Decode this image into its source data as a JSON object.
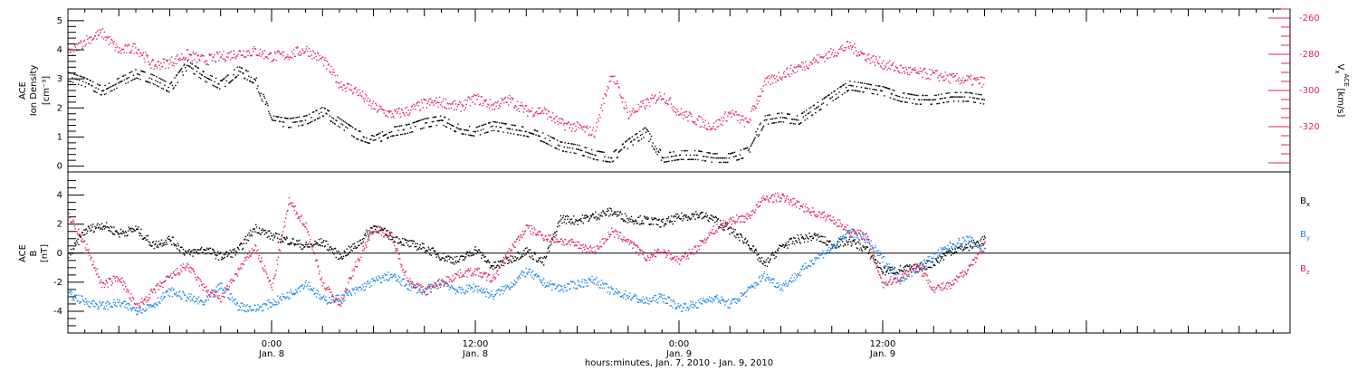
{
  "chart_data": [
    {
      "type": "scatter",
      "panel": "ion-density-velocity",
      "ylabel_line1": "ACE",
      "ylabel_line2": "Ion Density",
      "ylabel_units": "[cm⁻³]",
      "y2label_main": "V",
      "y2label_sub": "x",
      "y2label_sup": "ACE",
      "y2label_units": "[km/s]",
      "ylim": [
        -0.2,
        5.4
      ],
      "y2lim": [
        -255,
        -345
      ],
      "yticks": [
        "0",
        "1",
        "2",
        "3",
        "4",
        "5"
      ],
      "y2ticks": [
        "-260",
        "-280",
        "-300",
        "-320"
      ],
      "right_axis_color": "#e0245e",
      "series": [
        {
          "name": "Ion Density",
          "color": "#000000",
          "x_hours": [
            0,
            1,
            2,
            3,
            4,
            5,
            6,
            7,
            8,
            9,
            10,
            11,
            12,
            13,
            14,
            15,
            16,
            17,
            18,
            19,
            20,
            21,
            22,
            23,
            24,
            25,
            26,
            27,
            28,
            29,
            30,
            31,
            32,
            33,
            34,
            35,
            36,
            37,
            38,
            39,
            40,
            41,
            42,
            43,
            44,
            45,
            46,
            47,
            48,
            49,
            50,
            51,
            52,
            53,
            54
          ],
          "values": [
            3.1,
            2.9,
            2.6,
            2.9,
            3.2,
            3.0,
            2.7,
            3.5,
            3.1,
            2.8,
            3.3,
            3.0,
            1.6,
            1.5,
            1.6,
            1.9,
            1.5,
            1.1,
            0.9,
            1.2,
            1.3,
            1.5,
            1.6,
            1.3,
            1.2,
            1.4,
            1.3,
            1.2,
            1.0,
            0.7,
            0.6,
            0.4,
            0.3,
            0.8,
            1.2,
            0.3,
            0.4,
            0.4,
            0.3,
            0.3,
            0.5,
            1.6,
            1.7,
            1.6,
            2.0,
            2.4,
            2.8,
            2.7,
            2.6,
            2.4,
            2.3,
            2.3,
            2.4,
            2.4,
            2.3
          ]
        },
        {
          "name": "Vx",
          "color": "#e0245e",
          "axis": "right",
          "x_hours": [
            0,
            1,
            2,
            3,
            4,
            5,
            6,
            7,
            8,
            9,
            10,
            11,
            12,
            13,
            14,
            15,
            16,
            17,
            18,
            19,
            20,
            21,
            22,
            23,
            24,
            25,
            26,
            27,
            28,
            29,
            30,
            31,
            32,
            33,
            34,
            35,
            36,
            37,
            38,
            39,
            40,
            41,
            42,
            43,
            44,
            45,
            46,
            47,
            48,
            49,
            50,
            51,
            52,
            53,
            54
          ],
          "values": [
            -280,
            -272,
            -268,
            -278,
            -276,
            -286,
            -284,
            -280,
            -283,
            -281,
            -279,
            -278,
            -281,
            -280,
            -277,
            -283,
            -296,
            -300,
            -309,
            -313,
            -311,
            -307,
            -306,
            -309,
            -304,
            -308,
            -305,
            -311,
            -311,
            -318,
            -320,
            -323,
            -290,
            -313,
            -307,
            -302,
            -312,
            -316,
            -320,
            -312,
            -318,
            -296,
            -291,
            -287,
            -283,
            -279,
            -275,
            -281,
            -285,
            -288,
            -290,
            -291,
            -293,
            -294,
            -295
          ]
        }
      ]
    },
    {
      "type": "scatter",
      "panel": "magnetic-field",
      "ylabel_line1": "ACE",
      "ylabel_line2": "B",
      "ylabel_units": "[nT]",
      "ylim": [
        -5.5,
        5.6
      ],
      "yticks": [
        "4",
        "2",
        "0",
        "-2",
        "-4"
      ],
      "zero_line": true,
      "series": [
        {
          "name": "B",
          "sub": "x",
          "color": "#000000",
          "x_hours": [
            0,
            1,
            2,
            3,
            4,
            5,
            6,
            7,
            8,
            9,
            10,
            11,
            12,
            13,
            14,
            15,
            16,
            17,
            18,
            19,
            20,
            21,
            22,
            23,
            24,
            25,
            26,
            27,
            28,
            29,
            30,
            31,
            32,
            33,
            34,
            35,
            36,
            37,
            38,
            39,
            40,
            41,
            42,
            43,
            44,
            45,
            46,
            47,
            48,
            49,
            50,
            51,
            52,
            53,
            54
          ],
          "values": [
            -0.2,
            1.6,
            2.0,
            1.4,
            1.7,
            0.6,
            1.0,
            0.0,
            0.3,
            -0.2,
            0.2,
            1.8,
            1.2,
            0.9,
            0.5,
            0.8,
            -0.2,
            0.6,
            1.9,
            1.2,
            0.7,
            0.4,
            -0.2,
            -0.5,
            0.3,
            -0.9,
            -0.4,
            0.2,
            -0.6,
            2.4,
            2.3,
            2.6,
            2.9,
            2.4,
            2.3,
            2.1,
            2.5,
            2.7,
            2.4,
            1.6,
            0.8,
            -0.8,
            0.5,
            1.0,
            1.2,
            0.6,
            0.9,
            0.3,
            -1.2,
            -1.1,
            -1.0,
            -0.6,
            0.2,
            0.5,
            1.0
          ]
        },
        {
          "name": "B",
          "sub": "y",
          "color": "#1e88e5",
          "x_hours": [
            0,
            1,
            2,
            3,
            4,
            5,
            6,
            7,
            8,
            9,
            10,
            11,
            12,
            13,
            14,
            15,
            16,
            17,
            18,
            19,
            20,
            21,
            22,
            23,
            24,
            25,
            26,
            27,
            28,
            29,
            30,
            31,
            32,
            33,
            34,
            35,
            36,
            37,
            38,
            39,
            40,
            41,
            42,
            43,
            44,
            45,
            46,
            47,
            48,
            49,
            50,
            51,
            52,
            53,
            54
          ],
          "values": [
            -2.8,
            -3.3,
            -3.6,
            -3.4,
            -3.9,
            -3.5,
            -2.6,
            -3.0,
            -3.4,
            -2.2,
            -3.6,
            -3.8,
            -3.4,
            -2.8,
            -2.0,
            -3.2,
            -3.1,
            -2.5,
            -1.9,
            -1.5,
            -2.2,
            -2.6,
            -1.9,
            -2.6,
            -2.3,
            -2.9,
            -2.2,
            -1.2,
            -2.0,
            -2.4,
            -2.1,
            -1.8,
            -2.6,
            -2.9,
            -3.3,
            -3.0,
            -3.7,
            -3.5,
            -3.0,
            -3.5,
            -2.6,
            -1.5,
            -2.3,
            -1.4,
            -0.3,
            0.4,
            1.5,
            1.0,
            -0.4,
            -1.8,
            -1.0,
            -0.2,
            0.6,
            1.0,
            0.2
          ]
        },
        {
          "name": "B",
          "sub": "z",
          "color": "#e0245e",
          "x_hours": [
            0,
            1,
            2,
            3,
            4,
            5,
            6,
            7,
            8,
            9,
            10,
            11,
            12,
            13,
            14,
            15,
            16,
            17,
            18,
            19,
            20,
            21,
            22,
            23,
            24,
            25,
            26,
            27,
            28,
            29,
            30,
            31,
            32,
            33,
            34,
            35,
            36,
            37,
            38,
            39,
            40,
            41,
            42,
            43,
            44,
            45,
            46,
            47,
            48,
            49,
            50,
            51,
            52,
            53,
            54
          ],
          "values": [
            2.7,
            0.6,
            -2.2,
            -1.6,
            -3.7,
            -2.6,
            -1.6,
            -0.8,
            -2.4,
            -3.1,
            -1.2,
            0.5,
            -2.4,
            3.6,
            1.9,
            -2.1,
            -3.5,
            -0.6,
            1.8,
            1.2,
            -1.8,
            -2.6,
            -2.0,
            -1.4,
            -1.2,
            -1.8,
            0.2,
            1.8,
            1.2,
            0.9,
            0.6,
            0.2,
            1.5,
            0.9,
            -0.3,
            0.2,
            -0.5,
            0.4,
            1.6,
            2.3,
            2.5,
            3.8,
            3.9,
            3.4,
            2.8,
            2.4,
            1.6,
            1.2,
            -2.1,
            -1.6,
            -0.8,
            -2.4,
            -2.2,
            -1.0,
            0.6
          ]
        }
      ],
      "legend": [
        {
          "name": "B",
          "sub": "x",
          "color": "#000000"
        },
        {
          "name": "B",
          "sub": "y",
          "color": "#1e88e5"
        },
        {
          "name": "B",
          "sub": "z",
          "color": "#e0245e"
        }
      ]
    }
  ],
  "x_axis": {
    "range_hours": [
      0,
      72
    ],
    "tick_labels": [
      {
        "hour": 12,
        "time": "0:00",
        "date": "Jan. 8"
      },
      {
        "hour": 24,
        "time": "12:00",
        "date": "Jan. 8"
      },
      {
        "hour": 36,
        "time": "0:00",
        "date": "Jan. 9"
      },
      {
        "hour": 48,
        "time": "12:00",
        "date": "Jan. 9"
      }
    ],
    "xlabel": "hours:minutes, Jan.  7, 2010 - Jan.  9, 2010"
  }
}
